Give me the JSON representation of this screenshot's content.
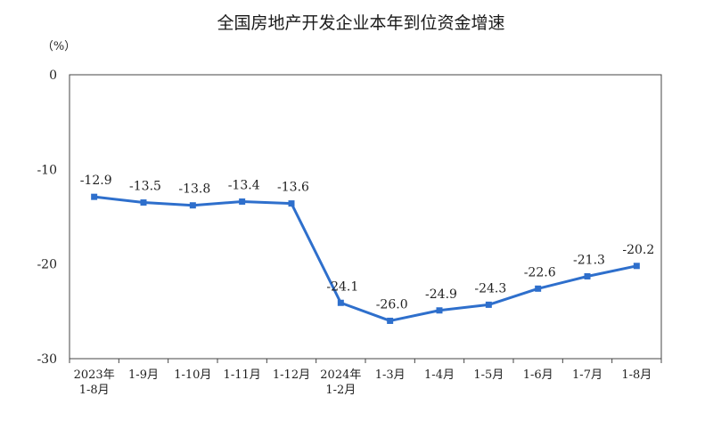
{
  "chart_data": {
    "type": "line",
    "title": "全国房地产开发企业本年到位资金增速",
    "unit_label": "（%）",
    "ylim": [
      -30,
      0
    ],
    "yticks": [
      0,
      -10,
      -20,
      -30
    ],
    "grid": false,
    "legend": "none",
    "categories": [
      [
        "2023年",
        "1-8月"
      ],
      [
        "1-9月"
      ],
      [
        "1-10月"
      ],
      [
        "1-11月"
      ],
      [
        "1-12月"
      ],
      [
        "2024年",
        "1-2月"
      ],
      [
        "1-3月"
      ],
      [
        "1-4月"
      ],
      [
        "1-5月"
      ],
      [
        "1-6月"
      ],
      [
        "1-7月"
      ],
      [
        "1-8月"
      ]
    ],
    "values": [
      -12.9,
      -13.5,
      -13.8,
      -13.4,
      -13.6,
      -24.1,
      -26.0,
      -24.9,
      -24.3,
      -22.6,
      -21.3,
      -20.2
    ],
    "data_labels": [
      "-12.9",
      "-13.5",
      "-13.8",
      "-13.4",
      "-13.6",
      "-24.1",
      "-26.0",
      "-24.9",
      "-24.3",
      "-22.6",
      "-21.3",
      "-20.2"
    ],
    "line_color": "#2e6fcc"
  }
}
